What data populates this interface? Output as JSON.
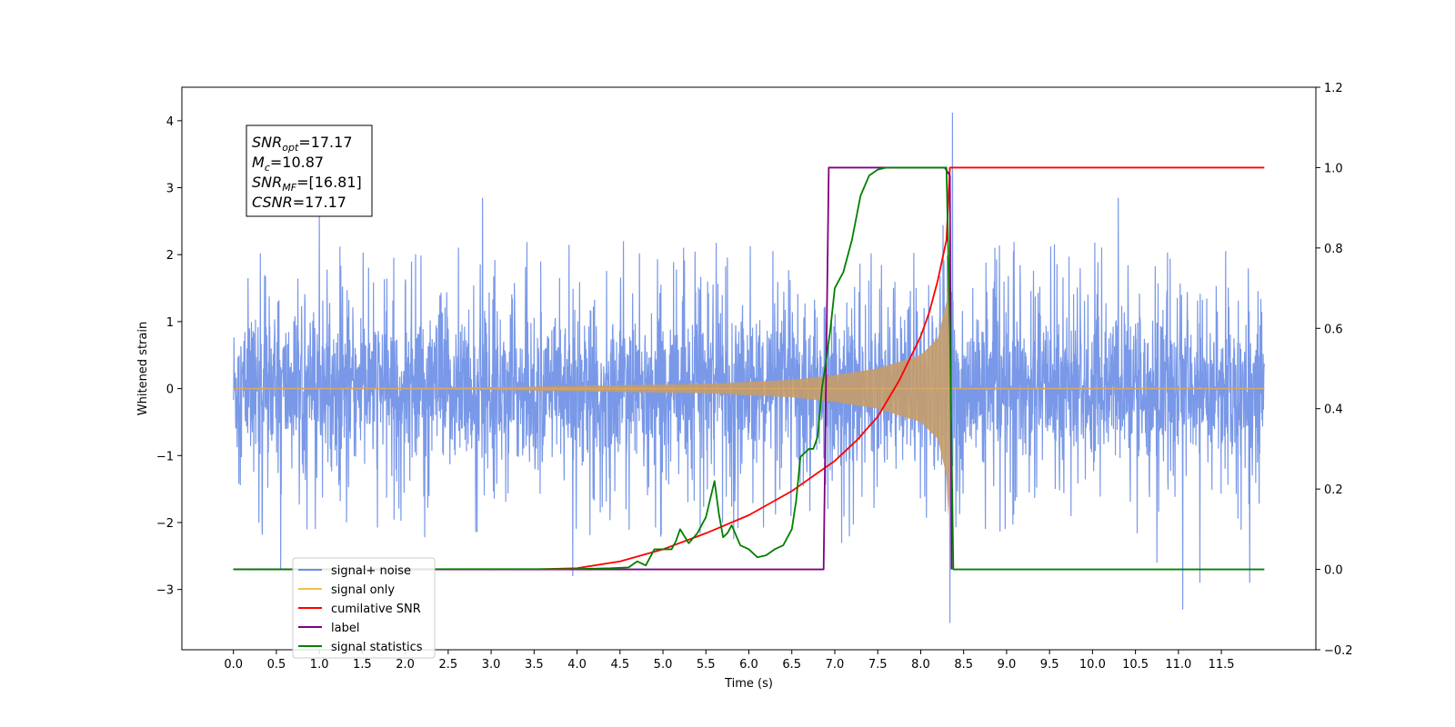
{
  "chart_data": {
    "type": "line",
    "xlabel": "Time (s)",
    "ylabel_left": "Whitened strain",
    "ylabel_right": "",
    "xlim": [
      -0.6,
      12.6
    ],
    "ylim_left": [
      -3.9,
      4.5
    ],
    "ylim_right": [
      -0.2,
      1.2
    ],
    "x_ticks": [
      "0.0",
      "0.5",
      "1.0",
      "1.5",
      "2.0",
      "2.5",
      "3.0",
      "3.5",
      "4.0",
      "4.5",
      "5.0",
      "5.5",
      "6.0",
      "6.5",
      "7.0",
      "7.5",
      "8.0",
      "8.5",
      "9.0",
      "9.5",
      "10.0",
      "10.5",
      "11.0",
      "11.5"
    ],
    "y_ticks_left": [
      "−3",
      "−2",
      "−1",
      "0",
      "1",
      "2",
      "3",
      "4"
    ],
    "y_ticks_right": [
      "−0.2",
      "0.0",
      "0.2",
      "0.4",
      "0.6",
      "0.8",
      "1.0",
      "1.2"
    ],
    "grid": false,
    "legend_placement": "lower-left",
    "annotation": [
      {
        "base": "SNR",
        "sub": "opt",
        "value": "=17.17"
      },
      {
        "base": "M",
        "sub": "c",
        "value": "=10.87"
      },
      {
        "base": "SNR",
        "sub": "MF",
        "value": "=[16.81]"
      },
      {
        "base": "CSNR",
        "sub": "",
        "value": "=17.17"
      }
    ],
    "noise_model": {
      "x_range": [
        0.0,
        12.0
      ],
      "typical_peak_abs": 2.0,
      "extreme_peaks": [
        {
          "x": 8.37,
          "y": 4.12
        },
        {
          "x": 8.34,
          "y": -3.5
        },
        {
          "x": 11.05,
          "y": -3.3
        },
        {
          "x": 0.55,
          "y": -2.7
        },
        {
          "x": 2.9,
          "y": 2.85
        },
        {
          "x": 10.3,
          "y": 2.85
        },
        {
          "x": 11.25,
          "y": -2.9
        },
        {
          "x": 11.83,
          "y": -2.9
        },
        {
          "x": 3.95,
          "y": -2.8
        },
        {
          "x": 1.0,
          "y": 2.6
        },
        {
          "x": 10.75,
          "y": -2.6
        }
      ]
    },
    "chirp_envelope": [
      {
        "x": 0.0,
        "y": 0.0
      },
      {
        "x": 3.0,
        "y": 0.02
      },
      {
        "x": 4.5,
        "y": 0.05
      },
      {
        "x": 5.5,
        "y": 0.07
      },
      {
        "x": 6.5,
        "y": 0.13
      },
      {
        "x": 7.0,
        "y": 0.2
      },
      {
        "x": 7.5,
        "y": 0.3
      },
      {
        "x": 8.0,
        "y": 0.5
      },
      {
        "x": 8.2,
        "y": 0.75
      },
      {
        "x": 8.3,
        "y": 1.3
      },
      {
        "x": 8.33,
        "y": 2.2
      },
      {
        "x": 8.36,
        "y": 0.0
      },
      {
        "x": 12.0,
        "y": 0.0
      }
    ],
    "series": [
      {
        "name": "signal+ noise",
        "color": "#6a8de6",
        "axis": "left",
        "kind": "noise"
      },
      {
        "name": "signal only",
        "color": "#f0c14b",
        "axis": "left",
        "kind": "chirp"
      },
      {
        "name": "cumilative SNR",
        "color": "#ff0000",
        "axis": "right",
        "x": [
          0.0,
          3.0,
          3.5,
          4.0,
          4.5,
          5.0,
          5.5,
          6.0,
          6.5,
          7.0,
          7.25,
          7.5,
          7.75,
          8.0,
          8.1,
          8.2,
          8.3,
          8.34,
          8.35,
          12.0
        ],
        "y": [
          0.0,
          0.0,
          0.0,
          0.003,
          0.02,
          0.05,
          0.09,
          0.135,
          0.195,
          0.27,
          0.32,
          0.38,
          0.47,
          0.58,
          0.64,
          0.72,
          0.82,
          1.0,
          1.0,
          1.0
        ]
      },
      {
        "name": "label",
        "color": "#800080",
        "axis": "right",
        "x": [
          0.0,
          6.87,
          6.93,
          8.28,
          8.34,
          8.36
        ],
        "y": [
          0.0,
          0.0,
          1.0,
          1.0,
          0.98,
          0.0
        ]
      },
      {
        "name": "signal statistics",
        "color": "#008000",
        "axis": "right",
        "x": [
          0.0,
          4.0,
          4.4,
          4.6,
          4.7,
          4.8,
          4.9,
          5.0,
          5.1,
          5.15,
          5.2,
          5.3,
          5.4,
          5.5,
          5.6,
          5.65,
          5.7,
          5.75,
          5.8,
          5.9,
          6.0,
          6.1,
          6.2,
          6.3,
          6.4,
          6.5,
          6.55,
          6.6,
          6.7,
          6.75,
          6.8,
          6.85,
          6.9,
          6.95,
          7.0,
          7.1,
          7.2,
          7.3,
          7.4,
          7.5,
          7.6,
          7.7,
          7.8,
          8.0,
          8.2,
          8.3,
          8.34,
          8.38,
          12.0
        ],
        "y": [
          0.0,
          0.001,
          0.003,
          0.005,
          0.02,
          0.01,
          0.05,
          0.05,
          0.05,
          0.07,
          0.1,
          0.065,
          0.09,
          0.13,
          0.22,
          0.14,
          0.08,
          0.09,
          0.11,
          0.06,
          0.05,
          0.03,
          0.035,
          0.05,
          0.06,
          0.1,
          0.17,
          0.28,
          0.3,
          0.3,
          0.33,
          0.45,
          0.52,
          0.6,
          0.7,
          0.74,
          0.82,
          0.93,
          0.98,
          0.995,
          1.0,
          1.0,
          1.0,
          1.0,
          1.0,
          1.0,
          0.6,
          0.0,
          0.0
        ]
      }
    ],
    "legend": [
      "signal+ noise",
      "signal only",
      "cumilative SNR",
      "label",
      "signal statistics"
    ]
  }
}
